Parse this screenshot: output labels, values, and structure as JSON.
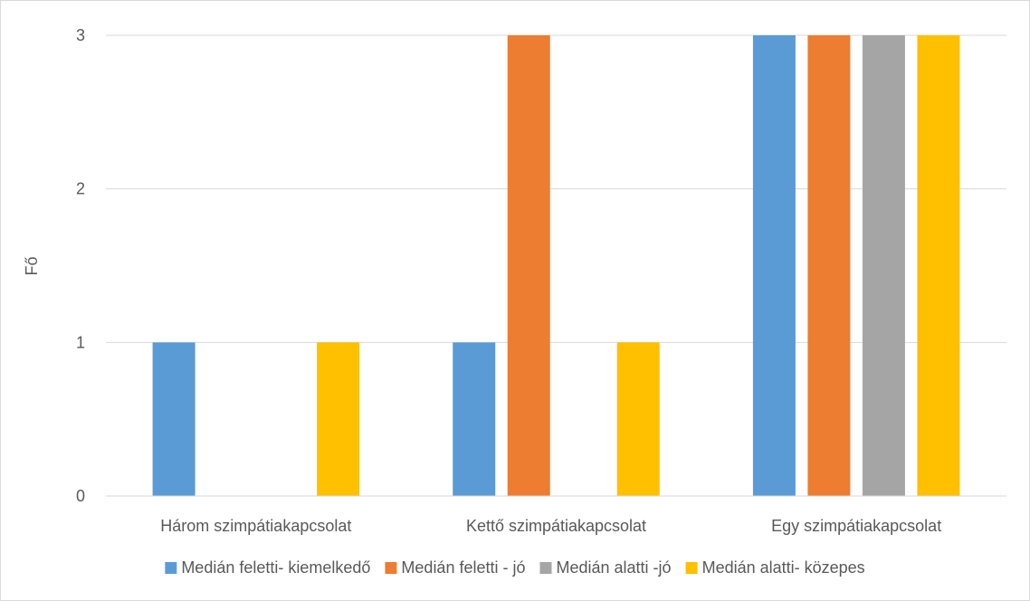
{
  "chart_data": {
    "type": "bar",
    "title": "",
    "xlabel": "",
    "ylabel": "Fő",
    "ylim": [
      0,
      3
    ],
    "yticks": [
      0,
      1,
      2,
      3
    ],
    "grid": true,
    "legend_position": "bottom",
    "categories": [
      "Három szimpátiakapcsolat",
      "Kettő szimpátiakapcsolat",
      "Egy szimpátiakapcsolat"
    ],
    "series": [
      {
        "name": "Medián feletti- kiemelkedő",
        "color": "#5b9bd5",
        "values": [
          1,
          1,
          3
        ]
      },
      {
        "name": "Medián feletti - jó",
        "color": "#ed7d31",
        "values": [
          0,
          3,
          3
        ]
      },
      {
        "name": "Medián alatti -jó",
        "color": "#a5a5a5",
        "values": [
          0,
          0,
          3
        ]
      },
      {
        "name": "Medián alatti- közepes",
        "color": "#ffc000",
        "values": [
          1,
          1,
          3
        ]
      }
    ]
  }
}
